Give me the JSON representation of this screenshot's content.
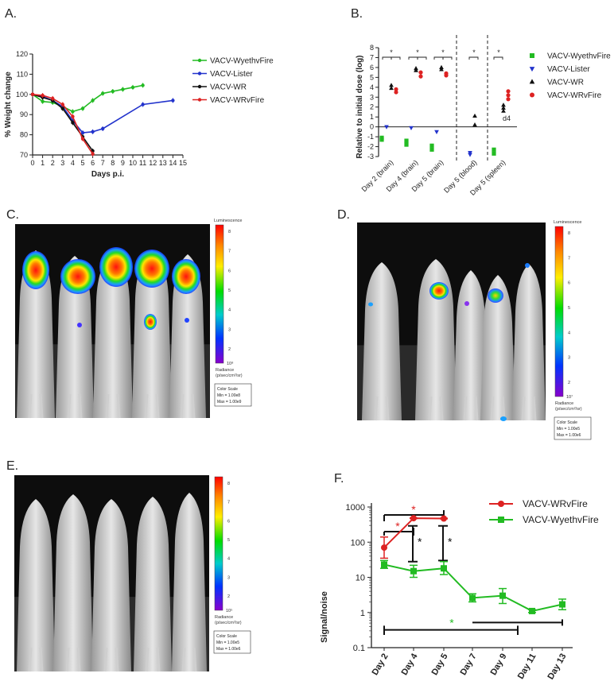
{
  "panels": {
    "A": "A.",
    "B": "B.",
    "C": "C.",
    "D": "D.",
    "E": "E.",
    "F": "F."
  },
  "chart_data": [
    {
      "id": "A",
      "type": "line",
      "title": "",
      "xlabel": "Days p.i.",
      "ylabel": "% Weight change",
      "xlim": [
        0,
        15
      ],
      "ylim": [
        70,
        120
      ],
      "xticks": [
        "0",
        "1",
        "2",
        "3",
        "4",
        "5",
        "6",
        "7",
        "8",
        "9",
        "10",
        "11",
        "12",
        "13",
        "14",
        "15"
      ],
      "yticks": [
        "70",
        "80",
        "90",
        "100",
        "110",
        "120"
      ],
      "series": [
        {
          "name": "VACV-WyethvFire",
          "color": "#22bb22",
          "x": [
            0,
            1,
            2,
            3,
            4,
            5,
            6,
            7,
            8,
            9,
            10,
            11
          ],
          "y": [
            100,
            96.5,
            96,
            94,
            91.5,
            93,
            97,
            100.5,
            101.5,
            102.5,
            103.5,
            104.5
          ]
        },
        {
          "name": "VACV-Lister",
          "color": "#2233cc",
          "x": [
            0,
            1,
            2,
            3,
            4,
            5,
            6,
            7,
            11,
            14
          ],
          "y": [
            100,
            99,
            97,
            94,
            87,
            81,
            81.5,
            83,
            95,
            97
          ]
        },
        {
          "name": "VACV-WR",
          "color": "#111111",
          "x": [
            0,
            1,
            2,
            3,
            4,
            5,
            6
          ],
          "y": [
            100,
            98.5,
            97,
            93,
            86,
            79,
            72
          ]
        },
        {
          "name": "VACV-WRvFire",
          "color": "#dd2222",
          "x": [
            0,
            1,
            2,
            3,
            4,
            5,
            6
          ],
          "y": [
            100,
            99.5,
            98,
            95,
            89,
            78,
            70.5
          ]
        }
      ]
    },
    {
      "id": "B",
      "type": "scatter",
      "title": "",
      "xlabel": "",
      "ylabel": "Relative to initial dose (log)",
      "ylim": [
        -3,
        8
      ],
      "yticks": [
        "-3",
        "-2",
        "-1",
        "0",
        "1",
        "2",
        "3",
        "4",
        "5",
        "6",
        "7",
        "8"
      ],
      "categories": [
        "Day 2 (brain)",
        "Day 4 (brain)",
        "Day 5 (brain)",
        "Day 5 (blood)",
        "Day 5 (spleen)"
      ],
      "annotation": "d4",
      "significance": [
        "*",
        "*",
        "*",
        "*",
        "*",
        "*",
        "*",
        "*"
      ],
      "series": [
        {
          "name": "VACV-WyethvFire",
          "color": "#22bb22",
          "marker": "square",
          "points": [
            [
              0,
              -1.1
            ],
            [
              0,
              -1.3
            ],
            [
              1,
              -1.4
            ],
            [
              1,
              -1.8
            ],
            [
              2,
              -1.9
            ],
            [
              2,
              -2.3
            ],
            [
              4,
              -2.3
            ],
            [
              4,
              -2.7
            ]
          ]
        },
        {
          "name": "VACV-Lister",
          "color": "#2233cc",
          "marker": "triangle-down",
          "points": [
            [
              0,
              0.0
            ],
            [
              1,
              -0.1
            ],
            [
              2,
              -0.5
            ],
            [
              3,
              -2.6
            ],
            [
              3,
              -2.8
            ]
          ]
        },
        {
          "name": "VACV-WR",
          "color": "#111111",
          "marker": "triangle",
          "points": [
            [
              0,
              4.2
            ],
            [
              0,
              3.9
            ],
            [
              1,
              5.9
            ],
            [
              1,
              5.7
            ],
            [
              2,
              6.0
            ],
            [
              2,
              5.8
            ],
            [
              3,
              1.1
            ],
            [
              3,
              0.2
            ],
            [
              4,
              2.2
            ],
            [
              4,
              1.9
            ],
            [
              4,
              1.6
            ]
          ]
        },
        {
          "name": "VACV-WRvFire",
          "color": "#dd2222",
          "marker": "circle",
          "points": [
            [
              0,
              3.8
            ],
            [
              0,
              3.5
            ],
            [
              1,
              5.5
            ],
            [
              1,
              5.1
            ],
            [
              2,
              5.4
            ],
            [
              2,
              5.2
            ],
            [
              4,
              3.6
            ],
            [
              4,
              3.2
            ],
            [
              4,
              2.8
            ]
          ]
        }
      ]
    },
    {
      "id": "F",
      "type": "line",
      "title": "",
      "xlabel": "",
      "ylabel": "Signal/noise",
      "yscale": "log",
      "ylim": [
        0.1,
        1000
      ],
      "yticks": [
        "0.1",
        "1",
        "10",
        "100",
        "1000"
      ],
      "categories": [
        "Day 2",
        "Day 4",
        "Day 5",
        "Day 7",
        "Day 9",
        "Day 11",
        "Day 13"
      ],
      "significance": [
        "*",
        "*",
        "*",
        "*",
        "*"
      ],
      "series": [
        {
          "name": "VACV-WRvFire",
          "color": "#dd2222",
          "marker": "circle",
          "values": [
            70,
            480,
            470,
            null,
            null,
            null,
            null
          ]
        },
        {
          "name": "VACV-WyethvFire",
          "color": "#22bb22",
          "marker": "square",
          "values": [
            23,
            15,
            18,
            2.6,
            3.0,
            1.1,
            1.7
          ]
        }
      ]
    }
  ],
  "imaging": {
    "C": {
      "title": "Luminescence",
      "scale": [
        "8",
        "7",
        "6",
        "5",
        "4",
        "3",
        "2"
      ],
      "bottom": "10⁸",
      "unit1": "Radiance",
      "unit2": "(p/sec/cm²/sr)",
      "cs_title": "Color Scale",
      "cs_min": "Min = 1.00e8",
      "cs_max": "Max = 1.00e9"
    },
    "D": {
      "title": "Luminescence",
      "scale": [
        "8",
        "7",
        "6",
        "5",
        "4",
        "3",
        "2"
      ],
      "bottom": "10⁷",
      "unit1": "Radiance",
      "unit2": "(p/sec/cm²/sr)",
      "cs_title": "Color Scale",
      "cs_min": "Min = 1.00e5",
      "cs_max": "Max = 1.00e6"
    },
    "E": {
      "title": "",
      "scale": [
        "8",
        "7",
        "6",
        "5",
        "4",
        "3",
        "2"
      ],
      "bottom": "10⁵",
      "unit1": "Radiance",
      "unit2": "(p/sec/cm²/sr)",
      "cs_title": "Color Scale",
      "cs_min": "Min = 1.00e5",
      "cs_max": "Max = 1.00e6"
    }
  }
}
